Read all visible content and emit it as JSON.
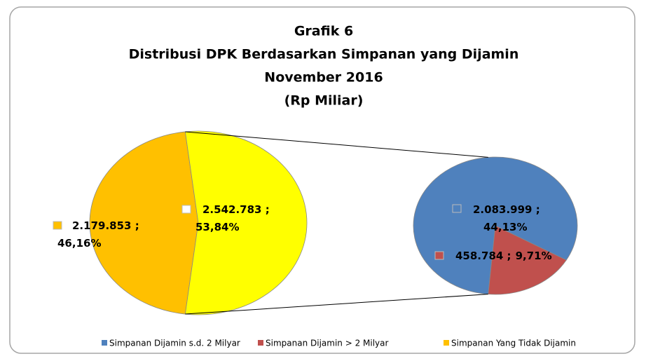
{
  "chart_data": {
    "type": "pie-of-pie",
    "title": [
      "Grafik 6",
      "Distribusi DPK Berdasarkan Simpanan yang Dijamin",
      "November 2016",
      "(Rp Miliar)"
    ],
    "categories": [
      "Simpanan Dijamin s.d. 2 Milyar",
      "Simpanan Dijamin > 2 Milyar",
      "Simpanan Yang Tidak Dijamin"
    ],
    "values": [
      2083999,
      458784,
      2179853
    ],
    "value_labels": [
      "2.083.999",
      "458.784",
      "2.179.853"
    ],
    "percents": [
      44.13,
      9.71,
      46.16
    ],
    "percent_labels": [
      "44,13%",
      "9,71%",
      "46,16%"
    ],
    "colors": [
      "#4f81bd",
      "#c0504d",
      "#ffc000"
    ],
    "other": {
      "value": 2542783,
      "value_label": "2.542.783",
      "percent": 53.84,
      "percent_label": "53,84%",
      "color": "#ffff00"
    },
    "label_separator": " ;",
    "legend": "bottom"
  }
}
